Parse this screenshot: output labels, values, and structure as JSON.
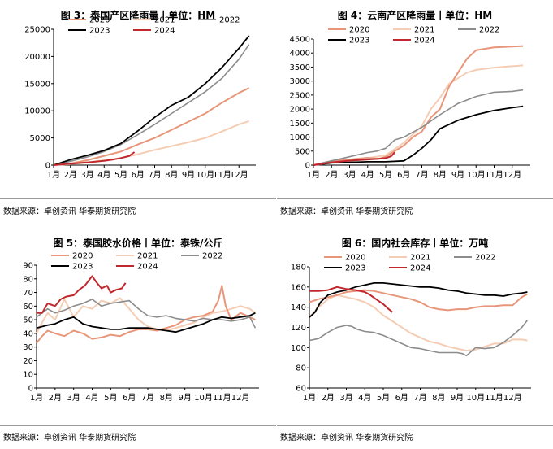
{
  "month_labels": [
    "1月",
    "2月",
    "3月",
    "4月",
    "5月",
    "6月",
    "7月",
    "8月",
    "9月",
    "10月",
    "11月",
    "12月"
  ],
  "colors": {
    "2020": "#E8967A",
    "2021": "#F5CDB4",
    "2022": "#8C8C8C",
    "2023": "#000000",
    "2024": "#C0282D"
  },
  "chart_data": [
    {
      "title": "图 3：泰国产区降雨量丨单位：HM",
      "source": "数据来源：卓创资讯 华泰期货研究院",
      "type": "line",
      "ylim": [
        0,
        25000
      ],
      "yticks": [
        0,
        5000,
        10000,
        15000,
        20000,
        25000
      ],
      "xlim": [
        1,
        13
      ],
      "series": [
        {
          "name": "2020",
          "x": [
            1,
            2,
            3,
            4,
            5,
            6,
            7,
            8,
            9,
            10,
            11,
            12,
            12.6
          ],
          "y": [
            0,
            300,
            900,
            1700,
            2500,
            3800,
            5000,
            6500,
            8000,
            9500,
            11500,
            13300,
            14200
          ]
        },
        {
          "name": "2021",
          "x": [
            1,
            2,
            3,
            4,
            5,
            6,
            7,
            8,
            9,
            10,
            11,
            12,
            12.6
          ],
          "y": [
            0,
            200,
            500,
            900,
            1300,
            2000,
            2800,
            3500,
            4200,
            5000,
            6200,
            7500,
            8100
          ]
        },
        {
          "name": "2022",
          "x": [
            1,
            2,
            3,
            4,
            5,
            6,
            7,
            8,
            9,
            10,
            11,
            12,
            12.6
          ],
          "y": [
            0,
            700,
            1500,
            2500,
            3800,
            5600,
            7500,
            9500,
            11500,
            13500,
            16000,
            19500,
            22200
          ]
        },
        {
          "name": "2023",
          "x": [
            1,
            2,
            3,
            4,
            5,
            6,
            7,
            8,
            9,
            10,
            11,
            12,
            12.6
          ],
          "y": [
            0,
            1000,
            1800,
            2700,
            4000,
            6300,
            8800,
            11000,
            12500,
            15000,
            18000,
            21500,
            23800
          ]
        },
        {
          "name": "2024",
          "x": [
            1,
            2,
            3,
            4,
            4.5,
            5,
            5.5,
            5.8
          ],
          "y": [
            0,
            250,
            500,
            800,
            1000,
            1300,
            1700,
            2400
          ]
        }
      ]
    },
    {
      "title": "图 4：云南产区降雨量丨单位：HM",
      "source": "数据来源：卓创资讯 华泰期货研究院",
      "type": "line",
      "ylim": [
        0,
        4500
      ],
      "yticks": [
        0,
        500,
        1000,
        1500,
        2000,
        2500,
        3000,
        3500,
        4000,
        4500
      ],
      "xlim": [
        1,
        13
      ],
      "series": [
        {
          "name": "2020",
          "x": [
            1,
            2,
            3,
            4,
            4.6,
            5,
            5.5,
            6,
            6.5,
            7,
            7.5,
            8,
            8.5,
            9,
            9.5,
            10,
            11,
            12,
            12.6
          ],
          "y": [
            0,
            150,
            200,
            260,
            220,
            300,
            500,
            700,
            1000,
            1200,
            1700,
            2000,
            2800,
            3300,
            3800,
            4100,
            4200,
            4230,
            4250
          ]
        },
        {
          "name": "2021",
          "x": [
            1,
            2,
            3,
            4,
            5,
            6,
            6.5,
            7,
            7.5,
            8,
            8.5,
            9,
            9.5,
            10,
            11,
            12,
            12.6
          ],
          "y": [
            0,
            80,
            150,
            250,
            350,
            800,
            1100,
            1400,
            2000,
            2400,
            2900,
            3100,
            3300,
            3400,
            3480,
            3530,
            3560
          ]
        },
        {
          "name": "2022",
          "x": [
            1,
            2,
            3,
            4,
            4.5,
            5,
            5.5,
            6,
            7,
            8,
            9,
            10,
            11,
            12,
            12.6
          ],
          "y": [
            0,
            150,
            300,
            450,
            500,
            600,
            900,
            1000,
            1350,
            1800,
            2200,
            2450,
            2600,
            2630,
            2680
          ]
        },
        {
          "name": "2023",
          "x": [
            1,
            2,
            3,
            4,
            5,
            6,
            6.5,
            7,
            7.5,
            8,
            9,
            10,
            11,
            12,
            12.6
          ],
          "y": [
            0,
            80,
            100,
            120,
            120,
            150,
            350,
            600,
            900,
            1300,
            1600,
            1800,
            1950,
            2050,
            2100
          ]
        },
        {
          "name": "2024",
          "x": [
            1,
            2,
            3,
            4,
            4.5,
            5,
            5.3,
            5.5
          ],
          "y": [
            0,
            100,
            160,
            200,
            220,
            250,
            320,
            450
          ]
        }
      ]
    },
    {
      "title": "图 5：泰国胶水价格丨单位：泰铢/公斤",
      "source": "数据来源：卓创资讯 华泰期货研究院",
      "type": "line",
      "ylim": [
        0,
        90
      ],
      "yticks": [
        0,
        10,
        20,
        30,
        40,
        50,
        60,
        70,
        80,
        90
      ],
      "xlim": [
        1,
        13
      ],
      "series": [
        {
          "name": "2020",
          "x": [
            1,
            1.3,
            1.6,
            2,
            2.5,
            3,
            3.5,
            4,
            4.5,
            5,
            5.5,
            6,
            6.5,
            7,
            7.5,
            8,
            8.5,
            9,
            9.5,
            10,
            10.5,
            10.8,
            11,
            11.2,
            11.5,
            12,
            12.5,
            12.8
          ],
          "y": [
            33,
            38,
            42,
            40,
            38,
            42,
            40,
            36,
            37,
            39,
            38,
            41,
            43,
            43,
            42,
            44,
            46,
            50,
            52,
            53,
            56,
            64,
            75,
            60,
            50,
            55,
            52,
            50
          ]
        },
        {
          "name": "2021",
          "x": [
            1,
            1.3,
            1.6,
            2,
            2.5,
            3,
            3.5,
            4,
            4.5,
            5,
            5.5,
            6,
            6.5,
            7,
            7.5,
            8,
            8.5,
            9,
            9.5,
            10,
            10.5,
            11,
            11.5,
            12,
            12.5,
            12.8
          ],
          "y": [
            40,
            48,
            55,
            50,
            65,
            52,
            60,
            58,
            64,
            62,
            66,
            58,
            50,
            45,
            43,
            42,
            44,
            46,
            48,
            52,
            55,
            56,
            58,
            60,
            58,
            55
          ]
        },
        {
          "name": "2022",
          "x": [
            1,
            1.3,
            1.6,
            2,
            2.5,
            3,
            3.5,
            4,
            4.5,
            5,
            5.5,
            6,
            6.5,
            7,
            7.5,
            8,
            8.5,
            9,
            9.5,
            10,
            10.5,
            11,
            11.5,
            12,
            12.5,
            12.8
          ],
          "y": [
            52,
            55,
            58,
            55,
            57,
            60,
            62,
            65,
            60,
            62,
            63,
            64,
            58,
            53,
            52,
            53,
            51,
            50,
            49,
            51,
            50,
            50,
            49,
            50,
            52,
            44
          ]
        },
        {
          "name": "2023",
          "x": [
            1,
            1.3,
            1.6,
            2,
            2.5,
            3,
            3.5,
            4,
            4.5,
            5,
            5.5,
            6,
            6.5,
            7,
            7.5,
            8,
            8.5,
            9,
            9.5,
            10,
            10.5,
            11,
            11.5,
            12,
            12.5,
            12.8
          ],
          "y": [
            44,
            45,
            46,
            47,
            50,
            52,
            47,
            45,
            44,
            43,
            43,
            44,
            44,
            44,
            43,
            42,
            41,
            43,
            45,
            47,
            50,
            52,
            51,
            52,
            53,
            55
          ]
        },
        {
          "name": "2024",
          "x": [
            1,
            1.3,
            1.6,
            2,
            2.3,
            2.6,
            3,
            3.3,
            3.6,
            4,
            4.2,
            4.5,
            4.8,
            5,
            5.3,
            5.6,
            5.8
          ],
          "y": [
            55,
            55,
            62,
            60,
            65,
            67,
            68,
            72,
            75,
            82,
            78,
            73,
            75,
            70,
            72,
            73,
            77
          ]
        }
      ]
    },
    {
      "title": "图 6：国内社会库存丨单位：万吨",
      "source": "数据来源：卓创资讯 华泰期货研究院",
      "type": "line",
      "ylim": [
        60,
        180
      ],
      "yticks": [
        60,
        80,
        100,
        120,
        140,
        160,
        180
      ],
      "xlim": [
        1,
        13
      ],
      "series": [
        {
          "name": "2020",
          "x": [
            1,
            1.5,
            2,
            2.5,
            3,
            3.5,
            4,
            4.5,
            5,
            5.5,
            6,
            6.5,
            7,
            7.5,
            8,
            8.5,
            9,
            9.5,
            10,
            10.5,
            11,
            11.5,
            12,
            12.5,
            12.8
          ],
          "y": [
            145,
            148,
            150,
            152,
            155,
            156,
            157,
            156,
            154,
            152,
            150,
            148,
            145,
            140,
            138,
            137,
            138,
            138,
            140,
            141,
            141,
            142,
            142,
            150,
            153
          ]
        },
        {
          "name": "2021",
          "x": [
            1,
            1.5,
            2,
            2.5,
            3,
            3.5,
            4,
            4.5,
            5,
            5.5,
            6,
            6.5,
            7,
            7.5,
            8,
            8.5,
            9,
            9.5,
            10,
            10.5,
            11,
            11.5,
            12,
            12.5,
            12.8
          ],
          "y": [
            130,
            140,
            148,
            152,
            150,
            148,
            145,
            140,
            132,
            126,
            120,
            114,
            110,
            106,
            104,
            101,
            99,
            97,
            98,
            101,
            104,
            104,
            108,
            108,
            107
          ]
        },
        {
          "name": "2022",
          "x": [
            1,
            1.5,
            2,
            2.5,
            3,
            3.3,
            3.6,
            4,
            4.5,
            5,
            5.5,
            6,
            6.5,
            7,
            7.5,
            8,
            8.5,
            9,
            9.3,
            9.5,
            10,
            10.5,
            11,
            11.5,
            12,
            12.5,
            12.8
          ],
          "y": [
            107,
            109,
            115,
            120,
            122,
            121,
            118,
            116,
            115,
            112,
            108,
            104,
            100,
            99,
            97,
            95,
            95,
            95,
            94,
            92,
            100,
            99,
            100,
            105,
            112,
            120,
            127
          ]
        },
        {
          "name": "2023",
          "x": [
            1,
            1.3,
            1.6,
            2,
            2.5,
            3,
            3.5,
            4,
            4.5,
            5,
            5.5,
            6,
            6.5,
            7,
            7.5,
            8,
            8.5,
            9,
            9.5,
            10,
            10.5,
            11,
            11.5,
            12,
            12.5,
            12.8
          ],
          "y": [
            130,
            135,
            145,
            152,
            155,
            157,
            160,
            162,
            164,
            164,
            163,
            162,
            161,
            160,
            160,
            159,
            157,
            156,
            154,
            153,
            152,
            152,
            151,
            153,
            154,
            155
          ]
        },
        {
          "name": "2024",
          "x": [
            1,
            1.5,
            2,
            2.5,
            3,
            3.5,
            4,
            4.3,
            4.6,
            5,
            5.3,
            5.5
          ],
          "y": [
            156,
            156,
            157,
            160,
            158,
            157,
            155,
            152,
            148,
            143,
            138,
            135
          ]
        }
      ]
    }
  ]
}
